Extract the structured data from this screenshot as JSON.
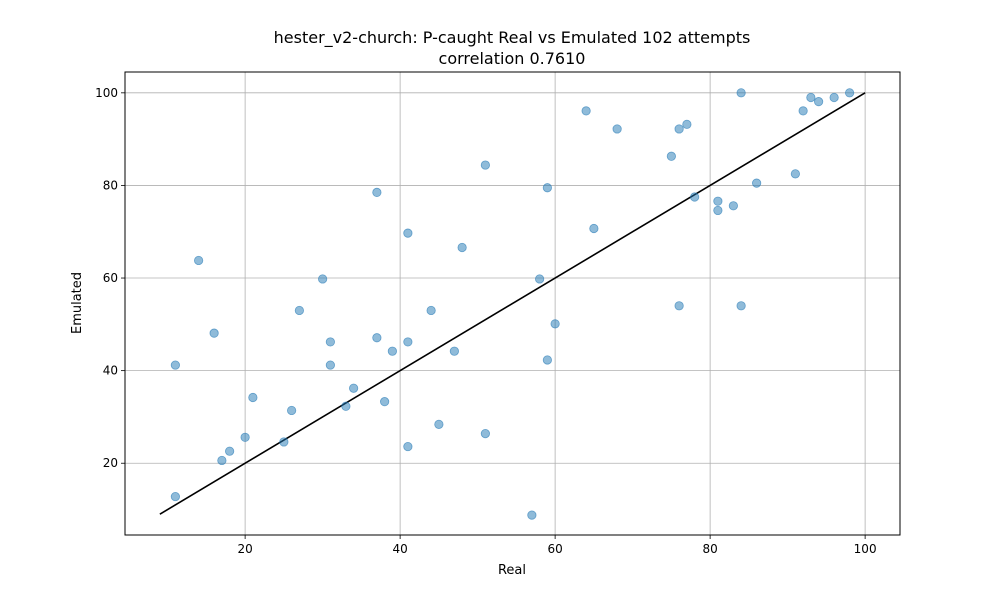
{
  "chart_data": {
    "type": "scatter",
    "title": "hester_v2-church: P-caught Real vs Emulated 102 attempts",
    "subtitle": "correlation 0.7610",
    "xlabel": "Real",
    "ylabel": "Emulated",
    "xlim": [
      4.5,
      104.5
    ],
    "ylim": [
      4.5,
      104.5
    ],
    "xticks": [
      20,
      40,
      60,
      80,
      100
    ],
    "yticks": [
      20,
      40,
      60,
      80,
      100
    ],
    "grid": true,
    "colors": {
      "points": "#1f77b4",
      "line": "#000000",
      "grid": "#b0b0b0"
    },
    "reference_line": {
      "x": [
        9,
        100
      ],
      "y": [
        9,
        100
      ]
    },
    "points": [
      {
        "x": 11,
        "y": 12.8
      },
      {
        "x": 11,
        "y": 41.2
      },
      {
        "x": 14,
        "y": 63.8
      },
      {
        "x": 16,
        "y": 48.1
      },
      {
        "x": 17,
        "y": 20.6
      },
      {
        "x": 18,
        "y": 22.6
      },
      {
        "x": 20,
        "y": 25.6
      },
      {
        "x": 21,
        "y": 34.2
      },
      {
        "x": 25,
        "y": 24.6
      },
      {
        "x": 26,
        "y": 31.4
      },
      {
        "x": 27,
        "y": 53.0
      },
      {
        "x": 30,
        "y": 59.8
      },
      {
        "x": 31,
        "y": 46.2
      },
      {
        "x": 31,
        "y": 41.2
      },
      {
        "x": 33,
        "y": 32.3
      },
      {
        "x": 34,
        "y": 36.2
      },
      {
        "x": 37,
        "y": 78.5
      },
      {
        "x": 37,
        "y": 47.1
      },
      {
        "x": 38,
        "y": 33.3
      },
      {
        "x": 39,
        "y": 44.2
      },
      {
        "x": 41,
        "y": 69.7
      },
      {
        "x": 41,
        "y": 46.2
      },
      {
        "x": 41,
        "y": 23.6
      },
      {
        "x": 44,
        "y": 53.0
      },
      {
        "x": 45,
        "y": 28.4
      },
      {
        "x": 47,
        "y": 44.2
      },
      {
        "x": 48,
        "y": 66.6
      },
      {
        "x": 51,
        "y": 84.4
      },
      {
        "x": 51,
        "y": 26.4
      },
      {
        "x": 57,
        "y": 8.8
      },
      {
        "x": 58,
        "y": 59.8
      },
      {
        "x": 59,
        "y": 79.5
      },
      {
        "x": 59,
        "y": 42.3
      },
      {
        "x": 60,
        "y": 50.1
      },
      {
        "x": 64,
        "y": 96.1
      },
      {
        "x": 65,
        "y": 70.7
      },
      {
        "x": 68,
        "y": 92.2
      },
      {
        "x": 75,
        "y": 86.3
      },
      {
        "x": 76,
        "y": 92.2
      },
      {
        "x": 76,
        "y": 54.0
      },
      {
        "x": 77,
        "y": 93.2
      },
      {
        "x": 78,
        "y": 77.5
      },
      {
        "x": 81,
        "y": 76.6
      },
      {
        "x": 81,
        "y": 74.6
      },
      {
        "x": 83,
        "y": 75.6
      },
      {
        "x": 84,
        "y": 100.0
      },
      {
        "x": 84,
        "y": 54.0
      },
      {
        "x": 86,
        "y": 80.5
      },
      {
        "x": 91,
        "y": 82.5
      },
      {
        "x": 92,
        "y": 96.1
      },
      {
        "x": 93,
        "y": 99.0
      },
      {
        "x": 94,
        "y": 98.1
      },
      {
        "x": 96,
        "y": 99.0
      },
      {
        "x": 98,
        "y": 100.0
      }
    ]
  }
}
